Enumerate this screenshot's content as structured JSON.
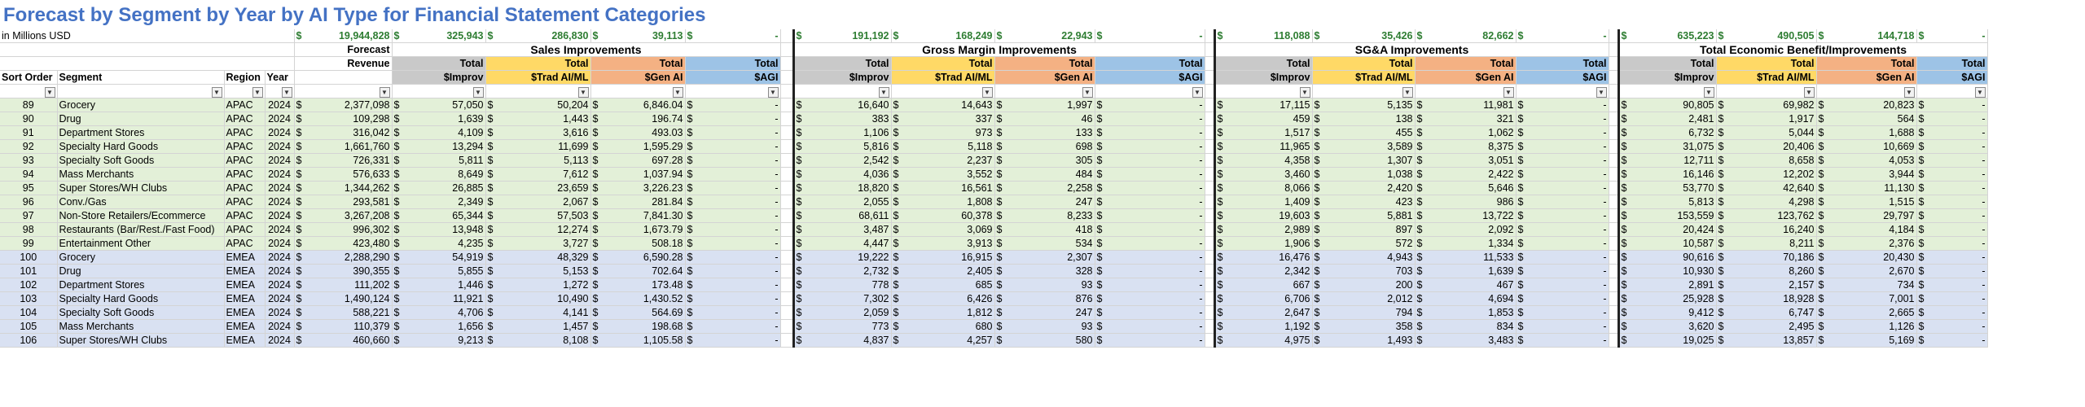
{
  "title": "Forecast by Segment by Year by AI Type for Financial Statement Categories",
  "units": "in Millions USD",
  "currency_symbol": "$",
  "dash": "-",
  "filter_glyph": "▼",
  "totals": {
    "forecast_revenue": "19,944,828",
    "sales": [
      "325,943",
      "286,830",
      "39,113",
      "-"
    ],
    "gross_margin": [
      "191,192",
      "168,249",
      "22,943",
      "-"
    ],
    "sga": [
      "118,088",
      "35,426",
      "82,662",
      "-"
    ],
    "total_econ": [
      "635,223",
      "490,505",
      "144,718",
      "-"
    ]
  },
  "groups": {
    "sales": "Sales Improvements",
    "gross_margin": "Gross Margin Improvements",
    "sga": "SG&A Improvements",
    "total_econ": "Total Economic Benefit/Improvements"
  },
  "headers": {
    "sort_order": "Sort Order",
    "segment": "Segment",
    "region": "Region",
    "year": "Year",
    "forecast_top": "Forecast",
    "forecast_bottom": "Revenue",
    "total": "Total",
    "improv": "$Improv",
    "trad": "$Trad AI/ML",
    "gen": "$Gen AI",
    "agi": "$AGI"
  },
  "colors": {
    "title": "#4472c4",
    "totals_text": "#2e7d32",
    "gray_header": "#c9c9c9",
    "yellow_header": "#ffd966",
    "orange_header": "#f4b183",
    "blue_header": "#9dc3e6",
    "apac_row": "#e3f0d8",
    "emea_row": "#d9e1f2"
  },
  "rows": [
    {
      "sort": "89",
      "segment": "Grocery",
      "region": "APAC",
      "year": "2024",
      "revenue": "2,377,098",
      "sales": [
        "57,050",
        "50,204",
        "6,846.04",
        "-"
      ],
      "gm": [
        "16,640",
        "14,643",
        "1,997",
        "-"
      ],
      "sga": [
        "17,115",
        "5,135",
        "11,981",
        "-"
      ],
      "te": [
        "90,805",
        "69,982",
        "20,823",
        "-"
      ]
    },
    {
      "sort": "90",
      "segment": "Drug",
      "region": "APAC",
      "year": "2024",
      "revenue": "109,298",
      "sales": [
        "1,639",
        "1,443",
        "196.74",
        "-"
      ],
      "gm": [
        "383",
        "337",
        "46",
        "-"
      ],
      "sga": [
        "459",
        "138",
        "321",
        "-"
      ],
      "te": [
        "2,481",
        "1,917",
        "564",
        "-"
      ]
    },
    {
      "sort": "91",
      "segment": "Department Stores",
      "region": "APAC",
      "year": "2024",
      "revenue": "316,042",
      "sales": [
        "4,109",
        "3,616",
        "493.03",
        "-"
      ],
      "gm": [
        "1,106",
        "973",
        "133",
        "-"
      ],
      "sga": [
        "1,517",
        "455",
        "1,062",
        "-"
      ],
      "te": [
        "6,732",
        "5,044",
        "1,688",
        "-"
      ]
    },
    {
      "sort": "92",
      "segment": "Specialty Hard Goods",
      "region": "APAC",
      "year": "2024",
      "revenue": "1,661,760",
      "sales": [
        "13,294",
        "11,699",
        "1,595.29",
        "-"
      ],
      "gm": [
        "5,816",
        "5,118",
        "698",
        "-"
      ],
      "sga": [
        "11,965",
        "3,589",
        "8,375",
        "-"
      ],
      "te": [
        "31,075",
        "20,406",
        "10,669",
        "-"
      ]
    },
    {
      "sort": "93",
      "segment": "Specialty Soft Goods",
      "region": "APAC",
      "year": "2024",
      "revenue": "726,331",
      "sales": [
        "5,811",
        "5,113",
        "697.28",
        "-"
      ],
      "gm": [
        "2,542",
        "2,237",
        "305",
        "-"
      ],
      "sga": [
        "4,358",
        "1,307",
        "3,051",
        "-"
      ],
      "te": [
        "12,711",
        "8,658",
        "4,053",
        "-"
      ]
    },
    {
      "sort": "94",
      "segment": "Mass Merchants",
      "region": "APAC",
      "year": "2024",
      "revenue": "576,633",
      "sales": [
        "8,649",
        "7,612",
        "1,037.94",
        "-"
      ],
      "gm": [
        "4,036",
        "3,552",
        "484",
        "-"
      ],
      "sga": [
        "3,460",
        "1,038",
        "2,422",
        "-"
      ],
      "te": [
        "16,146",
        "12,202",
        "3,944",
        "-"
      ]
    },
    {
      "sort": "95",
      "segment": "Super Stores/WH Clubs",
      "region": "APAC",
      "year": "2024",
      "revenue": "1,344,262",
      "sales": [
        "26,885",
        "23,659",
        "3,226.23",
        "-"
      ],
      "gm": [
        "18,820",
        "16,561",
        "2,258",
        "-"
      ],
      "sga": [
        "8,066",
        "2,420",
        "5,646",
        "-"
      ],
      "te": [
        "53,770",
        "42,640",
        "11,130",
        "-"
      ]
    },
    {
      "sort": "96",
      "segment": "Conv./Gas",
      "region": "APAC",
      "year": "2024",
      "revenue": "293,581",
      "sales": [
        "2,349",
        "2,067",
        "281.84",
        "-"
      ],
      "gm": [
        "2,055",
        "1,808",
        "247",
        "-"
      ],
      "sga": [
        "1,409",
        "423",
        "986",
        "-"
      ],
      "te": [
        "5,813",
        "4,298",
        "1,515",
        "-"
      ]
    },
    {
      "sort": "97",
      "segment": "Non-Store Retailers/Ecommerce",
      "region": "APAC",
      "year": "2024",
      "revenue": "3,267,208",
      "sales": [
        "65,344",
        "57,503",
        "7,841.30",
        "-"
      ],
      "gm": [
        "68,611",
        "60,378",
        "8,233",
        "-"
      ],
      "sga": [
        "19,603",
        "5,881",
        "13,722",
        "-"
      ],
      "te": [
        "153,559",
        "123,762",
        "29,797",
        "-"
      ]
    },
    {
      "sort": "98",
      "segment": "Restaurants (Bar/Rest./Fast Food)",
      "region": "APAC",
      "year": "2024",
      "revenue": "996,302",
      "sales": [
        "13,948",
        "12,274",
        "1,673.79",
        "-"
      ],
      "gm": [
        "3,487",
        "3,069",
        "418",
        "-"
      ],
      "sga": [
        "2,989",
        "897",
        "2,092",
        "-"
      ],
      "te": [
        "20,424",
        "16,240",
        "4,184",
        "-"
      ]
    },
    {
      "sort": "99",
      "segment": "Entertainment Other",
      "region": "APAC",
      "year": "2024",
      "revenue": "423,480",
      "sales": [
        "4,235",
        "3,727",
        "508.18",
        "-"
      ],
      "gm": [
        "4,447",
        "3,913",
        "534",
        "-"
      ],
      "sga": [
        "1,906",
        "572",
        "1,334",
        "-"
      ],
      "te": [
        "10,587",
        "8,211",
        "2,376",
        "-"
      ]
    },
    {
      "sort": "100",
      "segment": "Grocery",
      "region": "EMEA",
      "year": "2024",
      "revenue": "2,288,290",
      "sales": [
        "54,919",
        "48,329",
        "6,590.28",
        "-"
      ],
      "gm": [
        "19,222",
        "16,915",
        "2,307",
        "-"
      ],
      "sga": [
        "16,476",
        "4,943",
        "11,533",
        "-"
      ],
      "te": [
        "90,616",
        "70,186",
        "20,430",
        "-"
      ]
    },
    {
      "sort": "101",
      "segment": "Drug",
      "region": "EMEA",
      "year": "2024",
      "revenue": "390,355",
      "sales": [
        "5,855",
        "5,153",
        "702.64",
        "-"
      ],
      "gm": [
        "2,732",
        "2,405",
        "328",
        "-"
      ],
      "sga": [
        "2,342",
        "703",
        "1,639",
        "-"
      ],
      "te": [
        "10,930",
        "8,260",
        "2,670",
        "-"
      ]
    },
    {
      "sort": "102",
      "segment": "Department Stores",
      "region": "EMEA",
      "year": "2024",
      "revenue": "111,202",
      "sales": [
        "1,446",
        "1,272",
        "173.48",
        "-"
      ],
      "gm": [
        "778",
        "685",
        "93",
        "-"
      ],
      "sga": [
        "667",
        "200",
        "467",
        "-"
      ],
      "te": [
        "2,891",
        "2,157",
        "734",
        "-"
      ]
    },
    {
      "sort": "103",
      "segment": "Specialty Hard Goods",
      "region": "EMEA",
      "year": "2024",
      "revenue": "1,490,124",
      "sales": [
        "11,921",
        "10,490",
        "1,430.52",
        "-"
      ],
      "gm": [
        "7,302",
        "6,426",
        "876",
        "-"
      ],
      "sga": [
        "6,706",
        "2,012",
        "4,694",
        "-"
      ],
      "te": [
        "25,928",
        "18,928",
        "7,001",
        "-"
      ]
    },
    {
      "sort": "104",
      "segment": "Specialty Soft Goods",
      "region": "EMEA",
      "year": "2024",
      "revenue": "588,221",
      "sales": [
        "4,706",
        "4,141",
        "564.69",
        "-"
      ],
      "gm": [
        "2,059",
        "1,812",
        "247",
        "-"
      ],
      "sga": [
        "2,647",
        "794",
        "1,853",
        "-"
      ],
      "te": [
        "9,412",
        "6,747",
        "2,665",
        "-"
      ]
    },
    {
      "sort": "105",
      "segment": "Mass Merchants",
      "region": "EMEA",
      "year": "2024",
      "revenue": "110,379",
      "sales": [
        "1,656",
        "1,457",
        "198.68",
        "-"
      ],
      "gm": [
        "773",
        "680",
        "93",
        "-"
      ],
      "sga": [
        "1,192",
        "358",
        "834",
        "-"
      ],
      "te": [
        "3,620",
        "2,495",
        "1,126",
        "-"
      ]
    },
    {
      "sort": "106",
      "segment": "Super Stores/WH Clubs",
      "region": "EMEA",
      "year": "2024",
      "revenue": "460,660",
      "sales": [
        "9,213",
        "8,108",
        "1,105.58",
        "-"
      ],
      "gm": [
        "4,837",
        "4,257",
        "580",
        "-"
      ],
      "sga": [
        "4,975",
        "1,493",
        "3,483",
        "-"
      ],
      "te": [
        "19,025",
        "13,857",
        "5,169",
        "-"
      ]
    }
  ]
}
